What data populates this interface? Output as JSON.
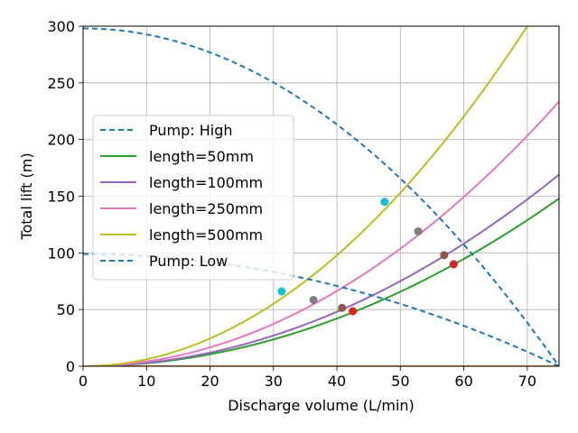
{
  "chart_data": {
    "type": "line",
    "title": "",
    "xlabel": "Discharge volume (L/min)",
    "ylabel": "Total lift (m)",
    "xlim": [
      0,
      75
    ],
    "ylim": [
      0,
      300
    ],
    "xticks": [
      0,
      10,
      20,
      30,
      40,
      50,
      60,
      70
    ],
    "yticks": [
      0,
      50,
      100,
      150,
      200,
      250,
      300
    ],
    "grid": true,
    "legend_position": "center-left",
    "colors": {
      "pump": "#1f77b4",
      "length_50": "#2ca02c",
      "length_100": "#9467bd",
      "length_250": "#e377c2",
      "length_500": "#bcbd22",
      "baseline": "#ff7f0e",
      "marker_50": "#d62728",
      "marker_100": "#8c564b",
      "marker_250": "#7f7f7f",
      "marker_500": "#17becf"
    },
    "pumps": [
      {
        "name": "Pump: High",
        "shut_off_head": 298,
        "max_flow": 75,
        "style": "dashed"
      },
      {
        "name": "Pump: Low",
        "shut_off_head": 99,
        "max_flow": 75,
        "style": "dashed"
      }
    ],
    "pipes": [
      {
        "name": "length=50mm",
        "coefficient": 0.02631,
        "color_key": "length_50"
      },
      {
        "name": "length=100mm",
        "coefficient": 0.03005,
        "color_key": "length_100"
      },
      {
        "name": "length=250mm",
        "coefficient": 0.04149,
        "color_key": "length_250"
      },
      {
        "name": "length=500mm",
        "coefficient": 0.06122,
        "color_key": "length_500"
      }
    ],
    "intersections": [
      {
        "series": "length=50mm",
        "pump": "Pump: High",
        "x": 58.4,
        "y": 90,
        "color_key": "marker_50"
      },
      {
        "series": "length=100mm",
        "pump": "Pump: High",
        "x": 56.9,
        "y": 98,
        "color_key": "marker_100"
      },
      {
        "series": "length=250mm",
        "pump": "Pump: High",
        "x": 52.8,
        "y": 119,
        "color_key": "marker_250"
      },
      {
        "series": "length=500mm",
        "pump": "Pump: High",
        "x": 47.5,
        "y": 145,
        "color_key": "marker_500"
      },
      {
        "series": "length=50mm",
        "pump": "Pump: Low",
        "x": 42.5,
        "y": 48.5,
        "color_key": "marker_50"
      },
      {
        "series": "length=100mm",
        "pump": "Pump: Low",
        "x": 40.8,
        "y": 51.5,
        "color_key": "marker_100"
      },
      {
        "series": "length=250mm",
        "pump": "Pump: Low",
        "x": 36.3,
        "y": 58.5,
        "color_key": "marker_250"
      },
      {
        "series": "length=500mm",
        "pump": "Pump: Low",
        "x": 31.3,
        "y": 66,
        "color_key": "marker_500"
      }
    ],
    "baseline": {
      "y": 0,
      "color_key": "baseline"
    },
    "legend": [
      {
        "label": "Pump: High",
        "color_key": "pump",
        "style": "dashed"
      },
      {
        "label": "length=50mm",
        "color_key": "length_50",
        "style": "solid"
      },
      {
        "label": "length=100mm",
        "color_key": "length_100",
        "style": "solid"
      },
      {
        "label": "length=250mm",
        "color_key": "length_250",
        "style": "solid"
      },
      {
        "label": "length=500mm",
        "color_key": "length_500",
        "style": "solid"
      },
      {
        "label": "Pump: Low",
        "color_key": "pump",
        "style": "dashed"
      }
    ]
  }
}
